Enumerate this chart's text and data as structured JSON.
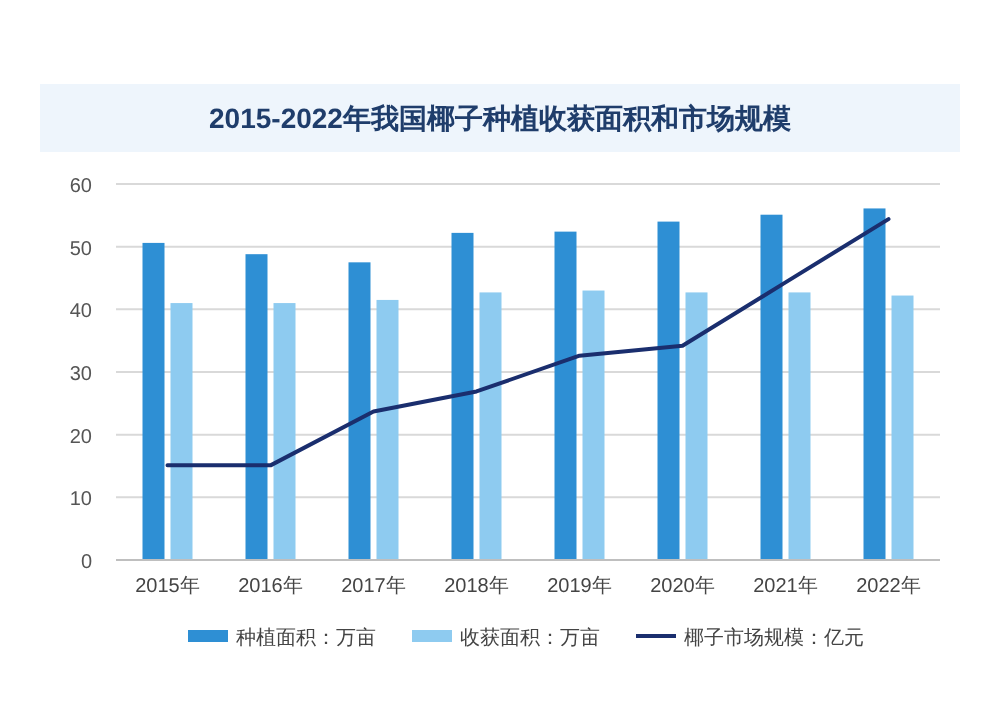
{
  "chart_data": {
    "type": "bar",
    "title": "2015-2022年我国椰子种植收获面积和市场规模",
    "categories": [
      "2015年",
      "2016年",
      "2017年",
      "2018年",
      "2019年",
      "2020年",
      "2021年",
      "2022年"
    ],
    "series": [
      {
        "name": "种植面积：万亩",
        "color": "#2e8fd4",
        "values": [
          50.6,
          48.8,
          47.5,
          52.2,
          52.4,
          54.0,
          55.1,
          56.1
        ]
      },
      {
        "name": "收获面积：万亩",
        "color": "#8ecbf0",
        "values": [
          41.0,
          41.0,
          41.5,
          42.7,
          43.0,
          42.7,
          42.7,
          42.2
        ]
      },
      {
        "name": "椰子市场规模：亿元",
        "type": "line",
        "color": "#1a2e6e",
        "values": [
          15.1,
          15.1,
          23.7,
          26.9,
          32.6,
          34.2,
          44.3,
          54.4
        ]
      }
    ],
    "ylim": [
      0,
      60
    ],
    "yticks": [
      0,
      10,
      20,
      30,
      40,
      50,
      60
    ],
    "grid": "y",
    "legend": "bottom"
  }
}
